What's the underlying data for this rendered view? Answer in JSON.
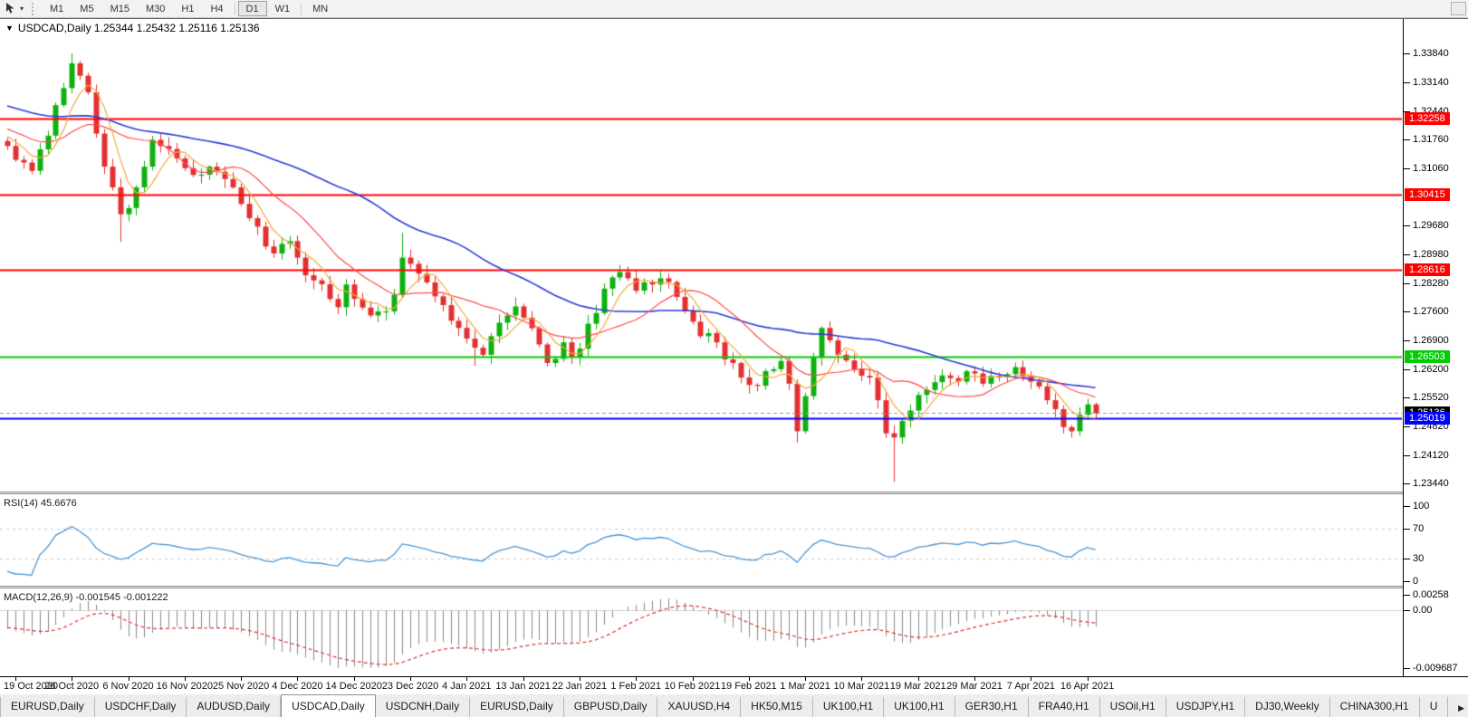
{
  "toolbar": {
    "timeframes": [
      {
        "label": "M1",
        "active": false
      },
      {
        "label": "M5",
        "active": false
      },
      {
        "label": "M15",
        "active": false
      },
      {
        "label": "M30",
        "active": false
      },
      {
        "label": "H1",
        "active": false
      },
      {
        "label": "H4",
        "active": false
      },
      {
        "label": "D1",
        "active": true
      },
      {
        "label": "W1",
        "active": false
      },
      {
        "label": "MN",
        "active": false
      }
    ]
  },
  "chart": {
    "title": "USDCAD,Daily 1.25344 1.25432 1.25116 1.25136"
  },
  "colors": {
    "background": "#ffffff",
    "candle_up": "#10b010",
    "candle_down": "#e43030",
    "ma_fast": "#f2a93b",
    "ma_mid": "#ff4a4a",
    "ma_slow": "#2b3cd8",
    "rsi_line": "#4a97d6",
    "rsi_levels": "#c8c8c8",
    "macd_bars": "#8a8a8a",
    "macd_signal": "#e03030",
    "bid_line": "#9a9a9a",
    "current_price_bg": "#000000"
  },
  "chart_data": {
    "type": "candlestick",
    "symbol": "USDCAD",
    "timeframe": "Daily",
    "quote": {
      "open": "1.25344",
      "high": "1.25432",
      "low": "1.25116",
      "close": "1.25136"
    },
    "bars_total": 136,
    "ylim": [
      1.2322,
      1.3463
    ],
    "price_waypoints": [
      [
        0,
        1.316
      ],
      [
        2,
        1.312
      ],
      [
        3,
        1.31
      ],
      [
        5,
        1.3185
      ],
      [
        7,
        1.33
      ],
      [
        8,
        1.336
      ],
      [
        9,
        1.333
      ],
      [
        10,
        1.329
      ],
      [
        11,
        1.319
      ],
      [
        12,
        1.311
      ],
      [
        13,
        1.306
      ],
      [
        14,
        1.2995
      ],
      [
        15,
        1.301
      ],
      [
        16,
        1.306
      ],
      [
        17,
        1.311
      ],
      [
        18,
        1.3175
      ],
      [
        19,
        1.316
      ],
      [
        21,
        1.313
      ],
      [
        23,
        1.309
      ],
      [
        25,
        1.311
      ],
      [
        27,
        1.308
      ],
      [
        28,
        1.306
      ],
      [
        29,
        1.302
      ],
      [
        31,
        1.2965
      ],
      [
        33,
        1.29
      ],
      [
        35,
        1.293
      ],
      [
        36,
        1.289
      ],
      [
        38,
        1.2835
      ],
      [
        40,
        1.279
      ],
      [
        41,
        1.277
      ],
      [
        42,
        1.2825
      ],
      [
        43,
        1.279
      ],
      [
        45,
        1.275
      ],
      [
        47,
        1.276
      ],
      [
        48,
        1.28
      ],
      [
        49,
        1.289
      ],
      [
        50,
        1.2875
      ],
      [
        52,
        1.283
      ],
      [
        54,
        1.2775
      ],
      [
        56,
        1.272
      ],
      [
        58,
        1.2672
      ],
      [
        59,
        1.2655
      ],
      [
        60,
        1.27
      ],
      [
        62,
        1.275
      ],
      [
        63,
        1.2772
      ],
      [
        64,
        1.2745
      ],
      [
        66,
        1.268
      ],
      [
        67,
        1.2635
      ],
      [
        68,
        1.2645
      ],
      [
        69,
        1.2685
      ],
      [
        70,
        1.265
      ],
      [
        71,
        1.267
      ],
      [
        72,
        1.273
      ],
      [
        74,
        1.2815
      ],
      [
        76,
        1.2855
      ],
      [
        77,
        1.284
      ],
      [
        78,
        1.281
      ],
      [
        80,
        1.2825
      ],
      [
        81,
        1.284
      ],
      [
        83,
        1.2795
      ],
      [
        84,
        1.276
      ],
      [
        85,
        1.2735
      ],
      [
        86,
        1.27
      ],
      [
        88,
        1.2685
      ],
      [
        90,
        1.2635
      ],
      [
        91,
        1.26
      ],
      [
        93,
        1.258
      ],
      [
        95,
        1.262
      ],
      [
        96,
        1.264
      ],
      [
        97,
        1.2585
      ],
      [
        98,
        1.247
      ],
      [
        99,
        1.2555
      ],
      [
        100,
        1.265
      ],
      [
        101,
        1.272
      ],
      [
        102,
        1.269
      ],
      [
        103,
        1.2655
      ],
      [
        105,
        1.262
      ],
      [
        107,
        1.26
      ],
      [
        108,
        1.2545
      ],
      [
        109,
        1.2465
      ],
      [
        110,
        1.2455
      ],
      [
        111,
        1.2495
      ],
      [
        112,
        1.252
      ],
      [
        114,
        1.257
      ],
      [
        116,
        1.2605
      ],
      [
        118,
        1.259
      ],
      [
        119,
        1.2615
      ],
      [
        121,
        1.2585
      ],
      [
        123,
        1.26
      ],
      [
        125,
        1.2625
      ],
      [
        127,
        1.259
      ],
      [
        129,
        1.2545
      ],
      [
        131,
        1.248
      ],
      [
        132,
        1.247
      ],
      [
        133,
        1.251
      ],
      [
        134,
        1.2535
      ],
      [
        135,
        1.25136
      ]
    ],
    "wick_overrides": {
      "8": {
        "high": 1.3384
      },
      "14": {
        "low": 1.2928
      },
      "49": {
        "high": 1.295
      },
      "58": {
        "low": 1.2628
      },
      "98": {
        "low": 1.2443
      },
      "110": {
        "low": 1.2348
      }
    },
    "horizontal_levels": [
      {
        "price": 1.32258,
        "label": "1.32258",
        "color": "#ff0000"
      },
      {
        "price": 1.30415,
        "label": "1.30415",
        "color": "#ff0000"
      },
      {
        "price": 1.28616,
        "label": "1.28616",
        "color": "#ff0000"
      },
      {
        "price": 1.26503,
        "label": "1.26503",
        "color": "#00cc00"
      },
      {
        "price": 1.25019,
        "label": "1.25019",
        "color": "#0000ff"
      }
    ],
    "current_price": {
      "value": 1.25136,
      "label": "1.25136"
    },
    "y_ticks": [
      "1.33840",
      "1.33140",
      "1.32440",
      "1.31760",
      "1.31060",
      "1.29680",
      "1.28980",
      "1.28280",
      "1.27600",
      "1.26900",
      "1.26200",
      "1.25520",
      "1.24820",
      "1.24120",
      "1.23440"
    ],
    "x_ticks": [
      "19 Oct 2020",
      "28 Oct 2020",
      "6 Nov 2020",
      "16 Nov 2020",
      "25 Nov 2020",
      "4 Dec 2020",
      "14 Dec 2020",
      "23 Dec 2020",
      "4 Jan 2021",
      "13 Jan 2021",
      "22 Jan 2021",
      "1 Feb 2021",
      "10 Feb 2021",
      "19 Feb 2021",
      "1 Mar 2021",
      "10 Mar 2021",
      "19 Mar 2021",
      "29 Mar 2021",
      "7 Apr 2021",
      "16 Apr 2021"
    ],
    "moving_averages": [
      {
        "period": 40,
        "color": "#2b3cd8"
      },
      {
        "period": 13,
        "color": "#ff4a4a"
      },
      {
        "period": 5,
        "color": "#f2a93b"
      }
    ],
    "rsi": {
      "label": "RSI(14) 45.6676",
      "period": 14,
      "value": "45.6676",
      "scale": [
        {
          "v": 100,
          "label": "100"
        },
        {
          "v": 70,
          "label": "70"
        },
        {
          "v": 30,
          "label": "30"
        },
        {
          "v": 0,
          "label": "0"
        }
      ],
      "levels": [
        70,
        30
      ]
    },
    "macd": {
      "label": "MACD(12,26,9) -0.001545 -0.001222",
      "params": "12,26,9",
      "macd_value": "-0.001545",
      "signal_value": "-0.001222",
      "scale": [
        {
          "v": 0.00258,
          "label": "0.00258"
        },
        {
          "v": 0,
          "label": "0.00"
        },
        {
          "v": -0.009687,
          "label": "-0.009687"
        }
      ]
    }
  },
  "tabs": {
    "items": [
      {
        "label": "EURUSD,Daily",
        "active": false
      },
      {
        "label": "USDCHF,Daily",
        "active": false
      },
      {
        "label": "AUDUSD,Daily",
        "active": false
      },
      {
        "label": "USDCAD,Daily",
        "active": true
      },
      {
        "label": "USDCNH,Daily",
        "active": false
      },
      {
        "label": "EURUSD,Daily",
        "active": false
      },
      {
        "label": "GBPUSD,Daily",
        "active": false
      },
      {
        "label": "XAUUSD,H4",
        "active": false
      },
      {
        "label": "HK50,M15",
        "active": false
      },
      {
        "label": "UK100,H1",
        "active": false
      },
      {
        "label": "UK100,H1",
        "active": false
      },
      {
        "label": "GER30,H1",
        "active": false
      },
      {
        "label": "FRA40,H1",
        "active": false
      },
      {
        "label": "USOil,H1",
        "active": false
      },
      {
        "label": "USDJPY,H1",
        "active": false
      },
      {
        "label": "DJ30,Weekly",
        "active": false
      },
      {
        "label": "CHINA300,H1",
        "active": false
      },
      {
        "label": "U",
        "active": false
      }
    ],
    "scroll_right_glyph": "▶"
  }
}
